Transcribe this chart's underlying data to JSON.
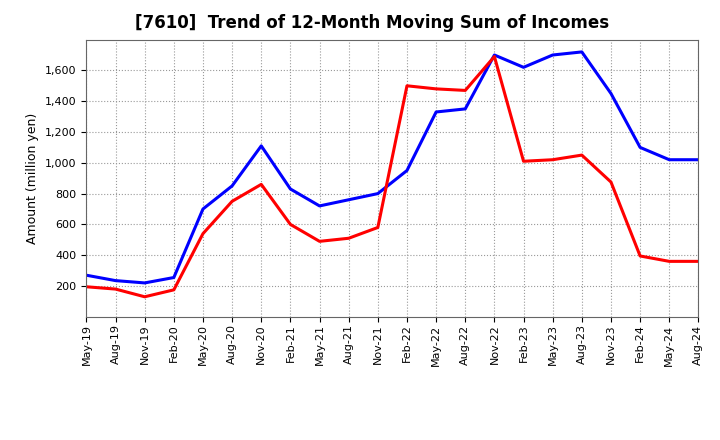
{
  "title": "[7610]  Trend of 12-Month Moving Sum of Incomes",
  "ylabel": "Amount (million yen)",
  "background_color": "#ffffff",
  "plot_bg_color": "#ffffff",
  "grid_color": "#999999",
  "x_labels": [
    "May-19",
    "Aug-19",
    "Nov-19",
    "Feb-20",
    "May-20",
    "Aug-20",
    "Nov-20",
    "Feb-21",
    "May-21",
    "Aug-21",
    "Nov-21",
    "Feb-22",
    "May-22",
    "Aug-22",
    "Nov-22",
    "Feb-23",
    "May-23",
    "Aug-23",
    "Nov-23",
    "Feb-24",
    "May-24",
    "Aug-24"
  ],
  "ordinary_income": [
    270,
    235,
    220,
    255,
    700,
    850,
    1110,
    830,
    720,
    760,
    800,
    950,
    1330,
    1350,
    1700,
    1620,
    1700,
    1720,
    1450,
    1100,
    1020,
    1020
  ],
  "net_income": [
    195,
    180,
    130,
    175,
    540,
    750,
    860,
    600,
    490,
    510,
    580,
    1500,
    1480,
    1470,
    1690,
    1010,
    1020,
    1050,
    875,
    395,
    360,
    360
  ],
  "ordinary_income_color": "#0000ff",
  "net_income_color": "#ff0000",
  "ylim_min": 0,
  "ylim_max": 1800,
  "yticks": [
    200,
    400,
    600,
    800,
    1000,
    1200,
    1400,
    1600
  ],
  "line_width": 2.2,
  "title_fontsize": 12,
  "tick_fontsize": 8,
  "ylabel_fontsize": 9
}
